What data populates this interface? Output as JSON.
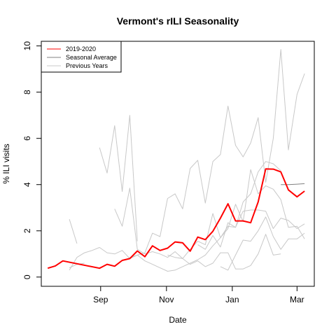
{
  "chart_data": {
    "type": "line",
    "title": "Vermont's rILI Seasonality",
    "xlabel": "Date",
    "ylabel": "% ILI visits",
    "x_axis": {
      "ticks": [
        {
          "label": "Sep",
          "value": "Sep 1"
        },
        {
          "label": "Nov",
          "value": "Nov 1"
        },
        {
          "label": "Jan",
          "value": "Jan 1"
        },
        {
          "label": "Mar",
          "value": "Mar 1"
        }
      ],
      "range": [
        "Jul 8",
        "Mar 17"
      ]
    },
    "y_axis": {
      "ticks": [
        0,
        2,
        4,
        6,
        8,
        10
      ],
      "range": [
        -0.4,
        10.2
      ]
    },
    "legend": {
      "position": "top-left",
      "entries": [
        {
          "label": "2019-2020",
          "color": "#ff0000"
        },
        {
          "label": "Seasonal Average",
          "color": "#808080"
        },
        {
          "label": "Previous Years",
          "color": "#c8c8c8"
        }
      ]
    },
    "series": [
      {
        "name": "2019-2020",
        "color": "#ff0000",
        "width": 2,
        "points": [
          [
            "Jul 14",
            0.38
          ],
          [
            "Jul 21",
            0.48
          ],
          [
            "Jul 28",
            0.7
          ],
          [
            "Aug 31",
            0.38
          ],
          [
            "Sep 7",
            0.55
          ],
          [
            "Sep 14",
            0.47
          ],
          [
            "Sep 21",
            0.72
          ],
          [
            "Sep 28",
            0.8
          ],
          [
            "Oct 5",
            1.13
          ],
          [
            "Oct 12",
            0.88
          ],
          [
            "Oct 19",
            1.35
          ],
          [
            "Oct 26",
            1.15
          ],
          [
            "Nov 2",
            1.25
          ],
          [
            "Nov 9",
            1.52
          ],
          [
            "Nov 16",
            1.48
          ],
          [
            "Nov 23",
            1.12
          ],
          [
            "Nov 30",
            1.73
          ],
          [
            "Dec 7",
            1.62
          ],
          [
            "Dec 14",
            1.98
          ],
          [
            "Dec 21",
            2.55
          ],
          [
            "Dec 28",
            3.17
          ],
          [
            "Jan 4",
            2.43
          ],
          [
            "Jan 11",
            2.43
          ],
          [
            "Jan 18",
            2.35
          ],
          [
            "Jan 25",
            3.25
          ],
          [
            "Feb 1",
            4.68
          ],
          [
            "Feb 8",
            4.67
          ],
          [
            "Feb 15",
            4.55
          ],
          [
            "Feb 22",
            3.77
          ],
          [
            "Mar 1",
            3.47
          ],
          [
            "Mar 8",
            3.72
          ]
        ]
      },
      {
        "name": "Seasonal Average",
        "color": "#808080",
        "width": 1,
        "points": [
          [
            "Feb 15",
            4.0
          ],
          [
            "Feb 22",
            4.0
          ],
          [
            "Mar 1",
            4.02
          ],
          [
            "Mar 8",
            4.04
          ]
        ]
      },
      {
        "name": "Previous Years",
        "color": "#c8c8c8",
        "width": 1,
        "points": [
          [
            "Aug 3",
            2.5
          ],
          [
            "Aug 10",
            1.45
          ]
        ]
      },
      {
        "name": "Previous Years",
        "color": "#c8c8c8",
        "width": 1,
        "points": [
          [
            "Aug 3",
            0.3
          ],
          [
            "Aug 10",
            0.85
          ],
          [
            "Aug 17",
            1.05
          ],
          [
            "Aug 24",
            1.15
          ],
          [
            "Aug 31",
            1.28
          ],
          [
            "Sep 7",
            1.05
          ],
          [
            "Sep 14",
            1.0
          ],
          [
            "Sep 21",
            1.15
          ],
          [
            "Sep 28",
            0.8
          ],
          [
            "Oct 5",
            0.95
          ],
          [
            "Oct 12",
            1.05
          ],
          [
            "Oct 19",
            1.9
          ],
          [
            "Oct 26",
            1.75
          ],
          [
            "Nov 2",
            3.4
          ],
          [
            "Nov 9",
            3.6
          ],
          [
            "Nov 16",
            2.95
          ],
          [
            "Nov 23",
            4.7
          ],
          [
            "Nov 30",
            5.05
          ],
          [
            "Dec 7",
            3.2
          ],
          [
            "Dec 14",
            5.0
          ],
          [
            "Dec 21",
            5.3
          ],
          [
            "Dec 28",
            7.4
          ],
          [
            "Jan 4",
            5.7
          ],
          [
            "Jan 11",
            5.2
          ],
          [
            "Jan 18",
            5.8
          ],
          [
            "Jan 25",
            6.9
          ],
          [
            "Feb 1",
            4.1
          ],
          [
            "Feb 8",
            6.0
          ],
          [
            "Feb 15",
            9.85
          ],
          [
            "Feb 22",
            5.5
          ],
          [
            "Mar 1",
            7.9
          ],
          [
            "Mar 8",
            8.8
          ]
        ]
      },
      {
        "name": "Previous Years",
        "color": "#c8c8c8",
        "width": 1,
        "points": [
          [
            "Aug 31",
            5.6
          ],
          [
            "Sep 7",
            4.5
          ],
          [
            "Sep 14",
            6.55
          ],
          [
            "Sep 21",
            3.7
          ],
          [
            "Sep 28",
            7.0
          ],
          [
            "Oct 5",
            1.55
          ]
        ]
      },
      {
        "name": "Previous Years",
        "color": "#c8c8c8",
        "width": 1,
        "points": [
          [
            "Aug 3",
            0.4
          ],
          [
            "Aug 10",
            0.55
          ],
          [
            "Aug 17",
            0.6
          ]
        ]
      },
      {
        "name": "Previous Years",
        "color": "#c8c8c8",
        "width": 1,
        "points": [
          [
            "Sep 14",
            2.95
          ],
          [
            "Sep 21",
            2.2
          ],
          [
            "Sep 28",
            3.85
          ],
          [
            "Oct 5",
            1.2
          ],
          [
            "Oct 12",
            1.0
          ],
          [
            "Oct 19",
            1.1
          ],
          [
            "Oct 26",
            1.0
          ],
          [
            "Nov 2",
            0.85
          ],
          [
            "Nov 9",
            1.1
          ],
          [
            "Nov 16",
            0.8
          ],
          [
            "Nov 23",
            1.2
          ],
          [
            "Nov 30",
            1.55
          ],
          [
            "Dec 7",
            1.4
          ],
          [
            "Dec 14",
            2.75
          ],
          [
            "Dec 21",
            1.7
          ],
          [
            "Dec 28",
            2.2
          ],
          [
            "Jan 4",
            2.15
          ],
          [
            "Jan 11",
            2.85
          ],
          [
            "Jan 18",
            2.9
          ],
          [
            "Jan 25",
            2.9
          ],
          [
            "Feb 1",
            2.85
          ],
          [
            "Feb 8",
            2.1
          ],
          [
            "Feb 15",
            2.55
          ],
          [
            "Feb 22",
            2.45
          ],
          [
            "Mar 1",
            2.1
          ],
          [
            "Mar 8",
            2.3
          ]
        ]
      },
      {
        "name": "Previous Years",
        "color": "#c8c8c8",
        "width": 1,
        "points": [
          [
            "Sep 28",
            0.85
          ],
          [
            "Oct 5",
            0.95
          ],
          [
            "Oct 12",
            0.7
          ],
          [
            "Oct 19",
            0.55
          ],
          [
            "Oct 26",
            0.4
          ],
          [
            "Nov 2",
            0.25
          ],
          [
            "Nov 9",
            0.3
          ],
          [
            "Nov 16",
            0.45
          ],
          [
            "Nov 23",
            0.6
          ],
          [
            "Nov 30",
            0.75
          ],
          [
            "Dec 7",
            0.95
          ],
          [
            "Dec 14",
            1.35
          ],
          [
            "Dec 21",
            1.7
          ],
          [
            "Dec 28",
            2.1
          ],
          [
            "Jan 4",
            3.15
          ],
          [
            "Jan 11",
            2.4
          ],
          [
            "Jan 18",
            4.65
          ],
          [
            "Jan 25",
            3.6
          ],
          [
            "Feb 1",
            3.95
          ],
          [
            "Feb 8",
            3.8
          ],
          [
            "Feb 15",
            3.35
          ],
          [
            "Feb 22",
            2.15
          ],
          [
            "Mar 1",
            2.2
          ],
          [
            "Mar 8",
            1.65
          ]
        ]
      },
      {
        "name": "Previous Years",
        "color": "#c8c8c8",
        "width": 1,
        "points": [
          [
            "Nov 2",
            0.95
          ],
          [
            "Nov 9",
            0.85
          ],
          [
            "Nov 16",
            0.8
          ],
          [
            "Nov 23",
            0.55
          ],
          [
            "Nov 30",
            0.7
          ],
          [
            "Dec 7",
            0.45
          ],
          [
            "Dec 14",
            0.6
          ],
          [
            "Dec 21",
            1.05
          ],
          [
            "Dec 28",
            1.05
          ],
          [
            "Jan 4",
            0.35
          ],
          [
            "Jan 11",
            0.35
          ],
          [
            "Jan 18",
            0.5
          ],
          [
            "Jan 25",
            1.0
          ],
          [
            "Feb 1",
            1.85
          ],
          [
            "Feb 8",
            0.95
          ],
          [
            "Feb 15",
            1.0
          ]
        ]
      },
      {
        "name": "Previous Years",
        "color": "#c8c8c8",
        "width": 1,
        "points": [
          [
            "Dec 21",
            0.45
          ],
          [
            "Dec 28",
            0.3
          ],
          [
            "Jan 4",
            0.95
          ],
          [
            "Jan 11",
            1.6
          ],
          [
            "Jan 18",
            1.55
          ],
          [
            "Jan 25",
            2.0
          ],
          [
            "Feb 1",
            2.6
          ],
          [
            "Feb 8",
            1.75
          ],
          [
            "Feb 15",
            1.2
          ],
          [
            "Feb 22",
            1.65
          ],
          [
            "Mar 1",
            1.65
          ],
          [
            "Mar 8",
            1.9
          ]
        ]
      },
      {
        "name": "Previous Years",
        "color": "#c8c8c8",
        "width": 1,
        "points": [
          [
            "Nov 30",
            1.4
          ],
          [
            "Dec 7",
            1.2
          ],
          [
            "Dec 14",
            1.8
          ],
          [
            "Dec 21",
            1.3
          ],
          [
            "Dec 28",
            2.35
          ],
          [
            "Jan 4",
            2.15
          ],
          [
            "Jan 11",
            3.25
          ],
          [
            "Jan 18",
            3.6
          ],
          [
            "Jan 25",
            4.55
          ],
          [
            "Feb 1",
            5.0
          ],
          [
            "Feb 8",
            4.9
          ],
          [
            "Feb 15",
            4.6
          ]
        ]
      }
    ]
  }
}
